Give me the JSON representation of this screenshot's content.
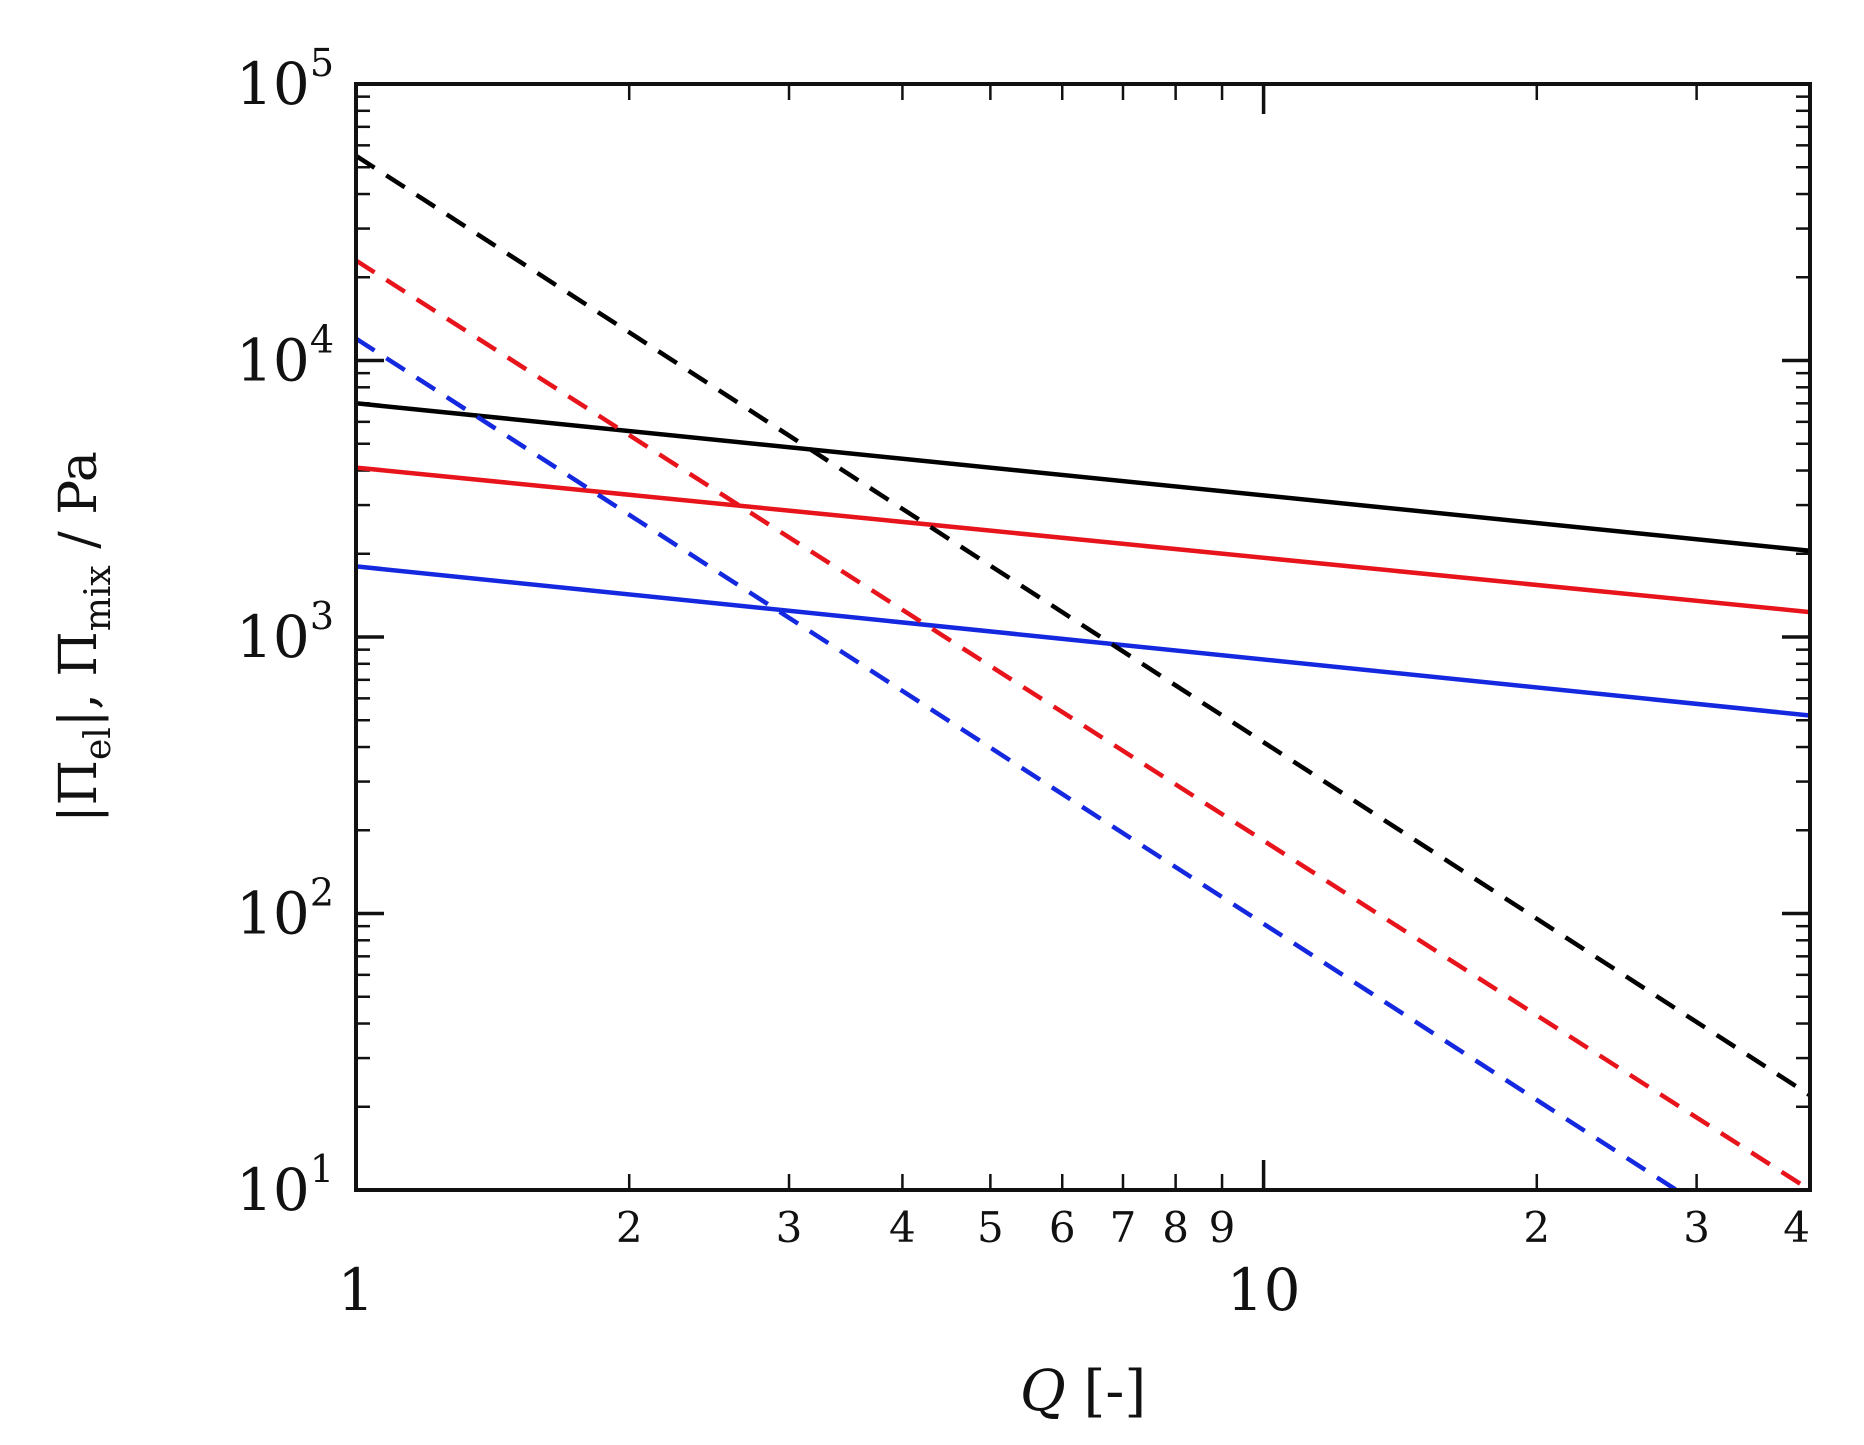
{
  "chart_data": {
    "type": "line",
    "xlabel": {
      "var": "Q",
      "rest": " [-]"
    },
    "ylabel": {
      "p1": "|Π",
      "s1": "el",
      "p2": "|, Π",
      "s2": "mix",
      "p3": " / Pa"
    },
    "x_scale": "log",
    "y_scale": "log",
    "xlim": [
      1,
      40
    ],
    "ylim": [
      10,
      100000
    ],
    "grid": false,
    "legend": "none",
    "x_major_ticks": [
      {
        "value": 1,
        "label": "1"
      },
      {
        "value": 10,
        "label": "10"
      }
    ],
    "x_minor_ticks": [
      {
        "value": 2,
        "label": "2"
      },
      {
        "value": 3,
        "label": "3"
      },
      {
        "value": 4,
        "label": "4"
      },
      {
        "value": 5,
        "label": "5"
      },
      {
        "value": 6,
        "label": "6"
      },
      {
        "value": 7,
        "label": "7"
      },
      {
        "value": 8,
        "label": "8"
      },
      {
        "value": 9,
        "label": "9"
      },
      {
        "value": 20,
        "label": "2"
      },
      {
        "value": 30,
        "label": "3"
      },
      {
        "value": 40,
        "label": "4"
      }
    ],
    "y_major_ticks": [
      {
        "value": 10,
        "base": "10",
        "exp": "1"
      },
      {
        "value": 100,
        "base": "10",
        "exp": "2"
      },
      {
        "value": 1000,
        "base": "10",
        "exp": "3"
      },
      {
        "value": 10000,
        "base": "10",
        "exp": "4"
      },
      {
        "value": 100000,
        "base": "10",
        "exp": "5"
      }
    ],
    "series": [
      {
        "color": "#000000",
        "dash": "solid",
        "x": [
          1,
          40
        ],
        "y": [
          7000,
          2050
        ]
      },
      {
        "color": "#e8141c",
        "dash": "solid",
        "x": [
          1,
          40
        ],
        "y": [
          4100,
          1230
        ]
      },
      {
        "color": "#1428e0",
        "dash": "solid",
        "x": [
          1,
          40
        ],
        "y": [
          1800,
          520
        ]
      },
      {
        "color": "#000000",
        "dash": "dashed",
        "x": [
          1,
          40
        ],
        "y": [
          55000,
          22
        ]
      },
      {
        "color": "#e8141c",
        "dash": "dashed",
        "x": [
          1,
          40
        ],
        "y": [
          23000,
          10
        ]
      },
      {
        "color": "#1428e0",
        "dash": "dashed",
        "x": [
          1,
          28.5
        ],
        "y": [
          12000,
          10
        ]
      }
    ]
  }
}
